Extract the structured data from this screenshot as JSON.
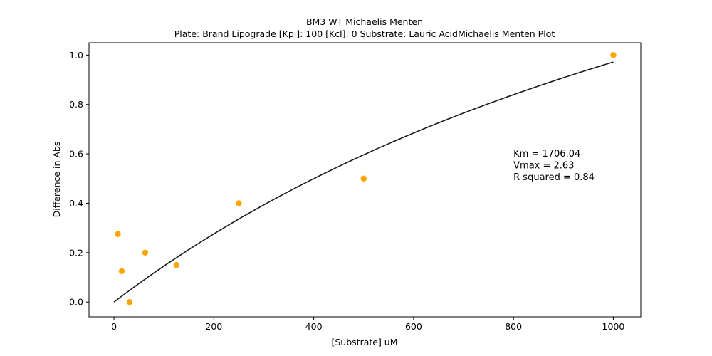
{
  "chart_data": {
    "type": "scatter",
    "title": "BM3 WT Michaelis Menten",
    "subtitle": "Plate: Brand Lipograde  [Kpi]: 100  [Kcl]: 0  Substrate: Lauric AcidMichaelis Menten Plot",
    "xlabel": "[Substrate] uM",
    "ylabel": "Difference in Abs",
    "xlim": [
      -50,
      1055
    ],
    "ylim": [
      -0.06,
      1.05
    ],
    "xticks": [
      0,
      200,
      400,
      600,
      800,
      1000
    ],
    "yticks": [
      0.0,
      0.2,
      0.4,
      0.6,
      0.8,
      1.0
    ],
    "xtick_labels": [
      "0",
      "200",
      "400",
      "600",
      "800",
      "1000"
    ],
    "ytick_labels": [
      "0.0",
      "0.2",
      "0.4",
      "0.6",
      "0.8",
      "1.0"
    ],
    "grid": false,
    "points": [
      {
        "x": 7.8,
        "y": 0.275
      },
      {
        "x": 15.6,
        "y": 0.125
      },
      {
        "x": 31.25,
        "y": 0.0
      },
      {
        "x": 62.5,
        "y": 0.2
      },
      {
        "x": 125,
        "y": 0.15
      },
      {
        "x": 250,
        "y": 0.4
      },
      {
        "x": 500,
        "y": 0.5
      },
      {
        "x": 1000,
        "y": 1.0
      }
    ],
    "point_color": "#ffa500",
    "fit": {
      "model": "michaelis-menten",
      "Km": 1706.04,
      "Vmax": 2.63,
      "x_range": [
        0,
        1000
      ],
      "color": "#1a1a1a"
    },
    "annotation_lines": [
      "Km = 1706.04",
      "Vmax = 2.63",
      "R squared = 0.84"
    ]
  }
}
